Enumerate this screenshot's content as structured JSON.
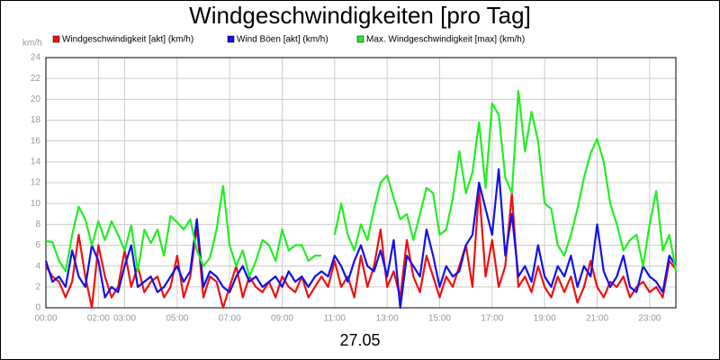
{
  "chart_data": {
    "type": "line",
    "title": "Windgeschwindigkeiten [pro Tag]",
    "y_unit": "km/h",
    "x_label": "27.05",
    "x": [
      0,
      0.25,
      0.5,
      0.75,
      1,
      1.25,
      1.5,
      1.75,
      2,
      2.25,
      2.5,
      2.75,
      3,
      3.25,
      3.5,
      3.75,
      4,
      4.25,
      4.5,
      4.75,
      5,
      5.25,
      5.5,
      5.75,
      6,
      6.25,
      6.5,
      6.75,
      7,
      7.25,
      7.5,
      7.75,
      8,
      8.25,
      8.5,
      8.75,
      9,
      9.25,
      9.5,
      9.75,
      10,
      10.25,
      10.5,
      10.75,
      11,
      11.25,
      11.5,
      11.75,
      12,
      12.25,
      12.5,
      12.75,
      13,
      13.25,
      13.5,
      13.75,
      14,
      14.25,
      14.5,
      14.75,
      15,
      15.25,
      15.5,
      15.75,
      16,
      16.25,
      16.5,
      16.75,
      17,
      17.25,
      17.5,
      17.75,
      18,
      18.25,
      18.5,
      18.75,
      19,
      19.25,
      19.5,
      19.75,
      20,
      20.25,
      20.5,
      20.75,
      21,
      21.25,
      21.5,
      21.75,
      22,
      22.25,
      22.5,
      22.75,
      23,
      23.25,
      23.5,
      23.75,
      24
    ],
    "series": [
      {
        "name": "Windgeschwindigkeit [akt] (km/h)",
        "color": "#ee1111",
        "values": [
          4,
          3,
          2.5,
          1,
          2.5,
          7,
          3,
          0,
          6,
          3,
          1,
          2,
          5.5,
          2,
          4,
          1.5,
          2.5,
          3,
          1,
          2,
          5,
          1,
          3,
          7.8,
          1,
          3,
          2.5,
          0,
          2,
          4,
          1,
          3,
          2,
          1.5,
          2.5,
          1,
          3,
          2,
          1.5,
          3,
          1,
          2,
          3,
          2,
          4.5,
          2,
          3,
          1,
          5,
          2,
          4,
          7.5,
          2,
          3.5,
          1,
          6.5,
          3,
          1.5,
          5,
          3,
          1,
          3,
          2,
          4,
          6,
          2,
          11.5,
          3,
          6.5,
          2,
          4,
          11,
          2,
          3,
          1.5,
          4,
          2,
          1,
          3,
          1.5,
          3,
          0.5,
          2,
          4.5,
          2,
          1,
          2.5,
          2,
          3,
          1,
          2,
          2.5,
          1.5,
          2,
          1,
          4.5,
          3.7
        ]
      },
      {
        "name": "Wind Böen [akt] (km/h)",
        "color": "#1111ee",
        "values": [
          4.5,
          2.5,
          3,
          2,
          5.5,
          3,
          2,
          6,
          4.5,
          1,
          2,
          1.5,
          4,
          6,
          2,
          2.5,
          3,
          1.5,
          2,
          3,
          4,
          2.5,
          3.5,
          8.5,
          2,
          3.5,
          3,
          2,
          1.5,
          3,
          4,
          2.5,
          3,
          2,
          2.5,
          3,
          2,
          3.5,
          2.5,
          3,
          2,
          3,
          3.5,
          3,
          5,
          4,
          2.5,
          4.5,
          6,
          4,
          3.5,
          5.5,
          3,
          6.5,
          0,
          5,
          4,
          3,
          7.5,
          5,
          2,
          4,
          3,
          3.5,
          6,
          7,
          12,
          9.5,
          7,
          13.3,
          5,
          9,
          3,
          4,
          2.5,
          6,
          3,
          2,
          4,
          3,
          5,
          2,
          4,
          3,
          8,
          3.5,
          2,
          3,
          5,
          2,
          1.5,
          4,
          3,
          2.5,
          1.5,
          5,
          4
        ]
      },
      {
        "name": "Max. Windgeschwindigkeit [max] (km/h)",
        "color": "#22ee22",
        "values": [
          6.4,
          6.3,
          4.5,
          3.5,
          7,
          9.7,
          8.5,
          6,
          8.3,
          6.5,
          8.3,
          7,
          5.5,
          7.9,
          3.5,
          7.5,
          6.2,
          7.5,
          5,
          8.8,
          8.2,
          7.5,
          8.5,
          5.5,
          4,
          4.8,
          7.5,
          11.7,
          6,
          4,
          5.5,
          3,
          4.5,
          6.5,
          6,
          4.5,
          7.5,
          5.5,
          6,
          6,
          4.5,
          5,
          5,
          null,
          7,
          10,
          7,
          5.5,
          8,
          6.5,
          9.5,
          12,
          12.7,
          10.5,
          8.5,
          9,
          6.5,
          9,
          11.5,
          11,
          7,
          7.5,
          10.5,
          15,
          11,
          13,
          17.8,
          11.5,
          19.6,
          18.5,
          12.5,
          11,
          20.8,
          15,
          18.8,
          16,
          10,
          9.5,
          6,
          5,
          7,
          9.5,
          12.5,
          14.8,
          16.2,
          14,
          10,
          8,
          5.5,
          6.5,
          7,
          4,
          8,
          11.2,
          5.5,
          7,
          3.5
        ]
      }
    ],
    "xlim": [
      0,
      24
    ],
    "xticks": [
      {
        "value": 0,
        "label": "00:00"
      },
      {
        "value": 2,
        "label": "02:00"
      },
      {
        "value": 3,
        "label": "03:00"
      },
      {
        "value": 5,
        "label": "05:00"
      },
      {
        "value": 7,
        "label": "07:00"
      },
      {
        "value": 9,
        "label": "09:00"
      },
      {
        "value": 11,
        "label": "11:00"
      },
      {
        "value": 13,
        "label": "13:00"
      },
      {
        "value": 15,
        "label": "15:00"
      },
      {
        "value": 17,
        "label": "17:00"
      },
      {
        "value": 19,
        "label": "19:00"
      },
      {
        "value": 21,
        "label": "21:00"
      },
      {
        "value": 23,
        "label": "23:00"
      }
    ],
    "ylim": [
      0,
      24
    ],
    "yticks": [
      0,
      2,
      4,
      6,
      8,
      10,
      12,
      14,
      16,
      18,
      20,
      22,
      24
    ],
    "grid": true
  }
}
